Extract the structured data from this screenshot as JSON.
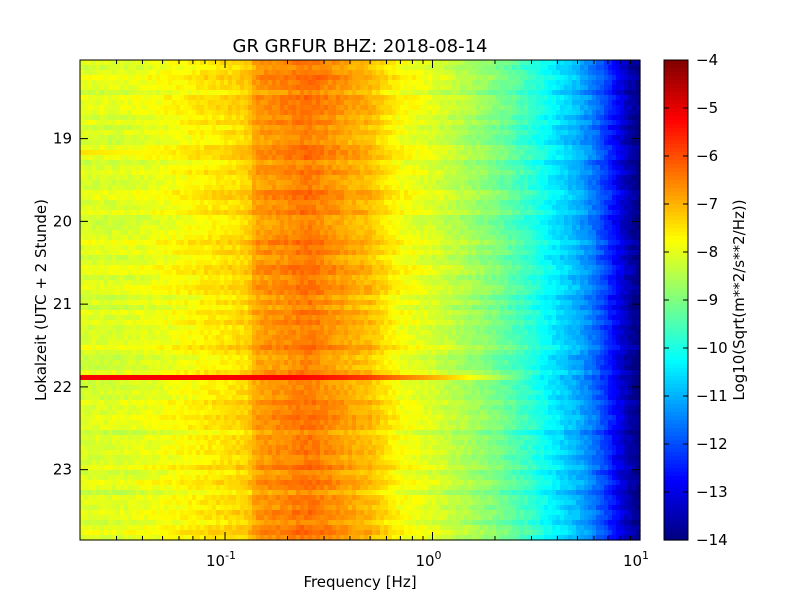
{
  "chart_data": {
    "type": "heatmap",
    "title": "GR GRFUR BHZ: 2018-08-14",
    "xlabel": "Frequency [Hz]",
    "ylabel": "Lokalzeit (UTC + 2 Stunde)",
    "x_scale": "log",
    "xlim": [
      0.02,
      10
    ],
    "x_ticks": [
      {
        "value": 0.1,
        "base": "10",
        "exp": "-1"
      },
      {
        "value": 1,
        "base": "10",
        "exp": "0"
      },
      {
        "value": 10,
        "base": "10",
        "exp": "1"
      }
    ],
    "ylim": [
      18.05,
      23.85
    ],
    "y_inverted": true,
    "y_ticks": [
      19,
      20,
      21,
      22,
      23
    ],
    "colorbar": {
      "label": "Log10(Sqrt(m**2/s**2/Hz))",
      "range": [
        -14,
        -4
      ],
      "ticks": [
        -4,
        -5,
        -6,
        -7,
        -8,
        -9,
        -10,
        -11,
        -12,
        -13,
        -14
      ],
      "colormap": "jet"
    },
    "spectrum_profile": {
      "frequency_hz": [
        0.02,
        0.03,
        0.04,
        0.06,
        0.08,
        0.1,
        0.13,
        0.14,
        0.2,
        0.25,
        0.3,
        0.4,
        0.5,
        0.6,
        0.7,
        1.0,
        1.5,
        2.0,
        3.0,
        4.0,
        5.0,
        6.0,
        7.0,
        8.0,
        9.0,
        10.0
      ],
      "level": [
        -8.1,
        -8.1,
        -8.0,
        -7.8,
        -7.6,
        -7.5,
        -7.3,
        -6.8,
        -6.6,
        -6.4,
        -6.6,
        -6.9,
        -7.1,
        -7.5,
        -7.8,
        -8.1,
        -8.6,
        -9.0,
        -9.8,
        -10.5,
        -11.0,
        -11.6,
        -12.3,
        -13.0,
        -13.6,
        -14.0
      ]
    },
    "events": [
      {
        "time": 19.18,
        "level": -6.8,
        "max_frequency_hz": 0.08
      },
      {
        "time": 21.88,
        "level": -5.2,
        "max_frequency_hz": 3.0
      }
    ]
  }
}
